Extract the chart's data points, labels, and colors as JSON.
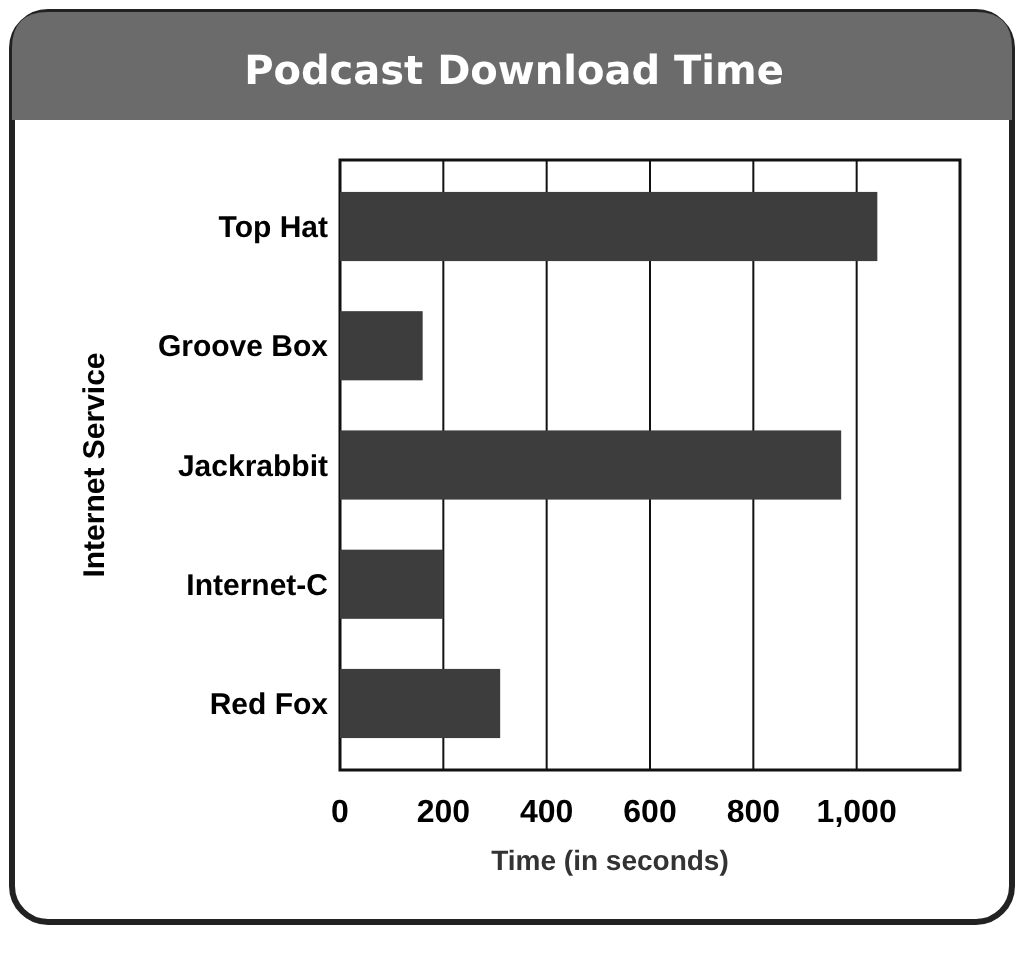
{
  "chart_data": {
    "type": "bar",
    "orientation": "horizontal",
    "title": "Podcast Download Time",
    "xlabel": "Time (in seconds)",
    "ylabel": "Internet Service",
    "categories": [
      "Top Hat",
      "Groove Box",
      "Jackrabbit",
      "Internet-C",
      "Red Fox"
    ],
    "values": [
      1040,
      160,
      970,
      200,
      310
    ],
    "color": "#3d3d3d",
    "xlim": [
      0,
      1200
    ],
    "xticks": [
      0,
      200,
      400,
      600,
      800,
      {
        "value": 1000,
        "label": "1,000"
      }
    ],
    "grid": "x"
  }
}
